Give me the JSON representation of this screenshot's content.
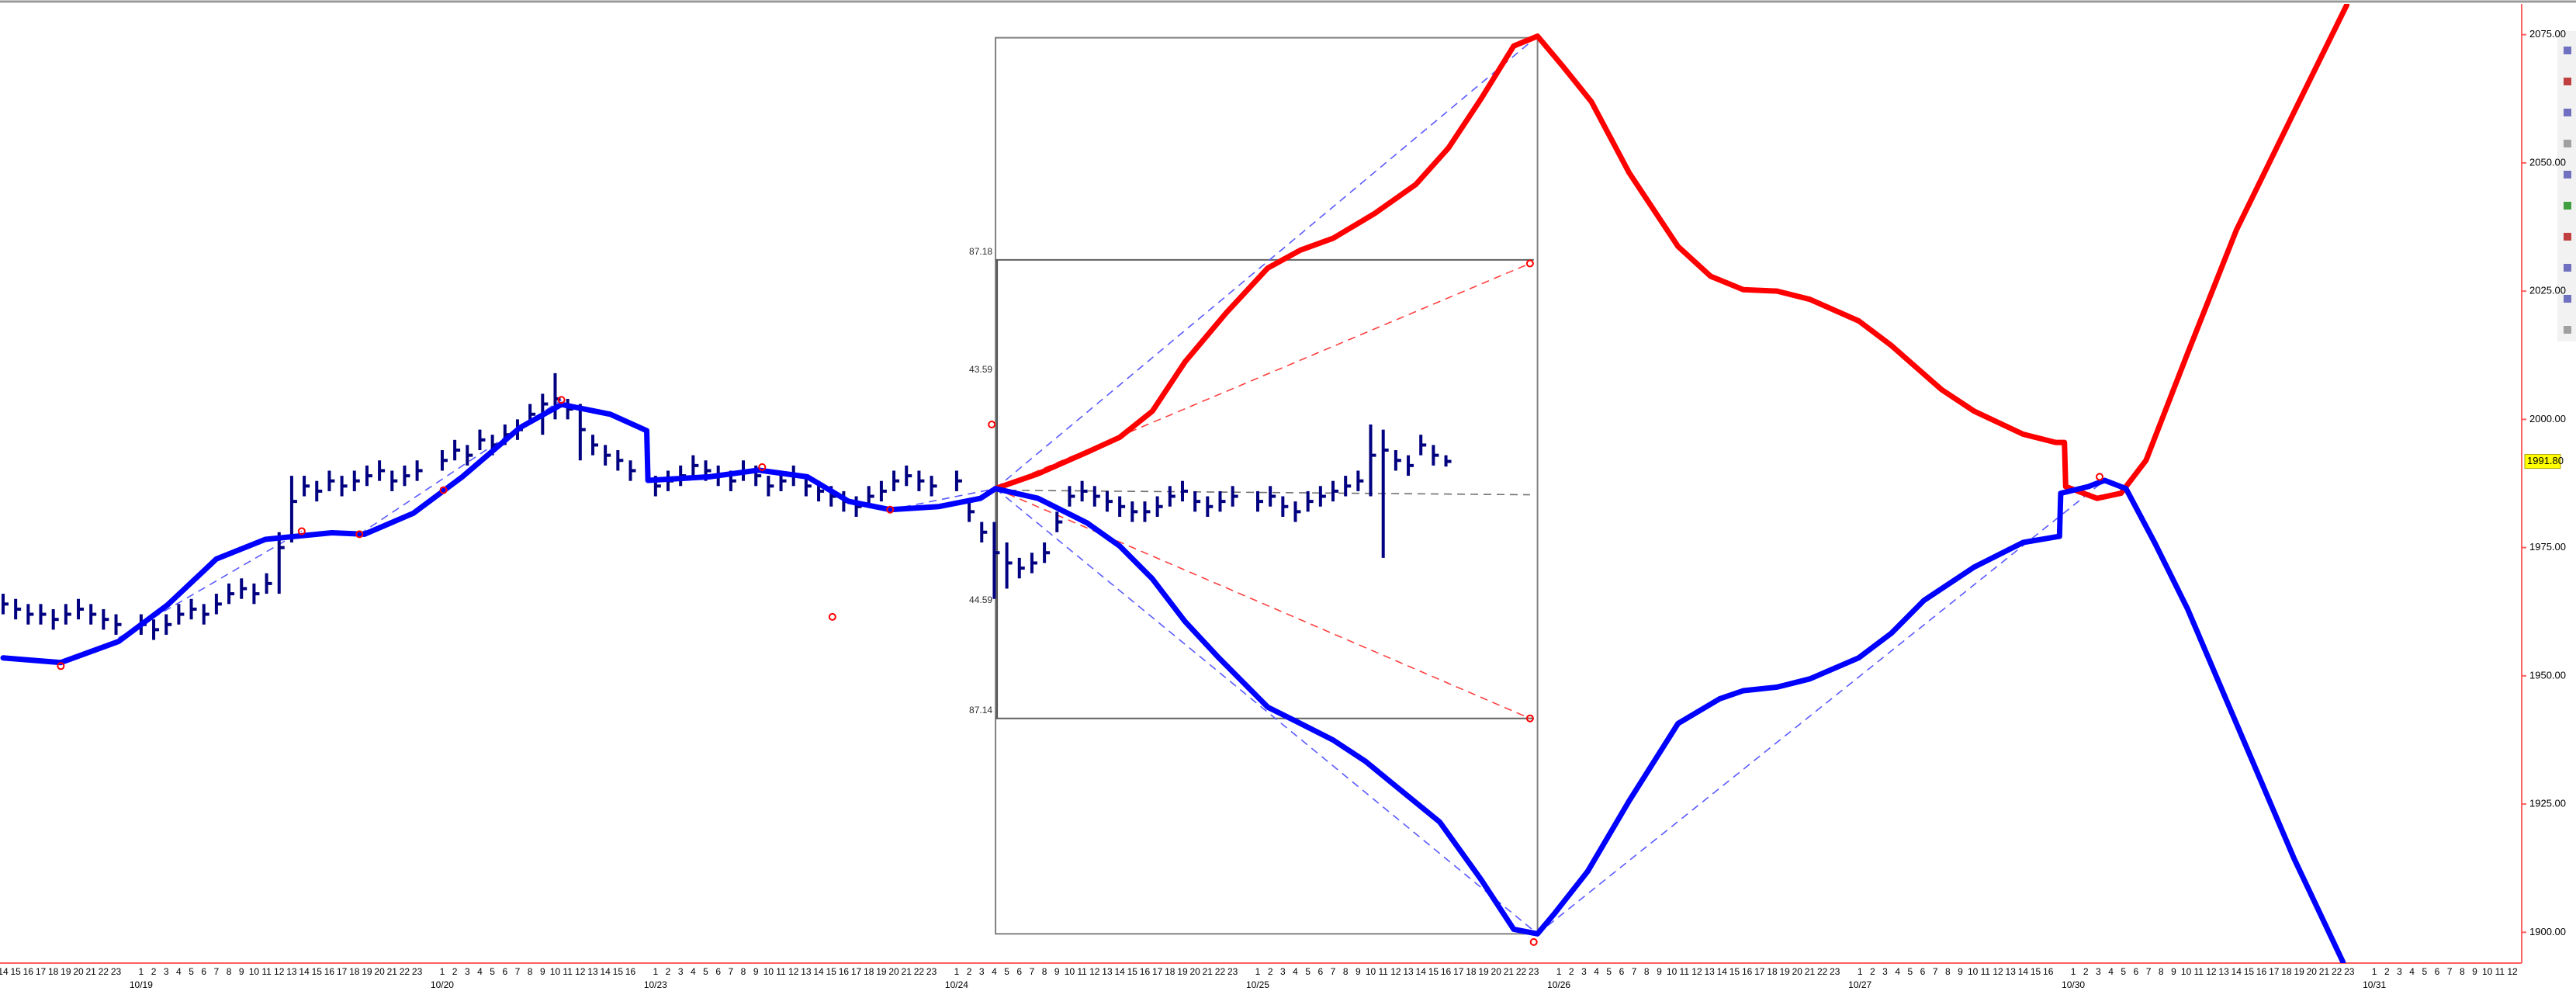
{
  "chart_data": {
    "type": "ohlc",
    "categories": [
      14,
      15,
      16,
      17,
      18,
      19,
      20,
      21,
      22,
      23,
      null,
      1,
      2,
      3,
      4,
      5,
      6,
      7,
      8,
      9,
      10,
      11,
      12,
      13,
      14,
      15,
      16,
      17,
      18,
      19,
      20,
      21,
      22,
      23,
      null,
      1,
      2,
      3,
      4,
      5,
      6,
      7,
      8,
      9,
      10,
      11,
      12,
      13,
      14,
      15,
      16,
      null,
      1,
      2,
      3,
      4,
      5,
      6,
      7,
      8,
      9,
      10,
      11,
      12,
      13,
      14,
      15,
      16,
      17,
      18,
      19,
      20,
      21,
      22,
      23,
      null,
      1,
      2,
      3,
      4,
      5,
      6,
      7,
      8,
      9,
      10,
      11,
      12,
      13,
      14,
      15,
      16,
      17,
      18,
      19,
      20,
      21,
      22,
      23,
      null,
      1,
      2,
      3,
      4,
      5,
      6,
      7,
      8,
      9,
      10,
      11,
      12,
      13,
      14,
      15,
      16,
      17,
      18,
      19,
      20,
      21,
      22,
      23,
      null,
      1,
      2,
      3,
      4,
      5,
      6,
      7,
      8,
      9,
      10,
      11,
      12,
      13,
      14,
      15,
      16,
      17,
      18,
      19,
      20,
      21,
      22,
      23,
      null,
      1,
      2,
      3,
      4,
      5,
      6,
      7,
      8,
      9,
      10,
      11,
      12,
      13,
      14,
      15,
      16,
      null,
      1,
      2,
      3,
      4,
      5,
      6,
      7,
      8,
      9,
      10,
      11,
      12,
      13,
      14,
      15,
      16,
      17,
      18,
      19,
      20,
      21,
      22,
      23,
      null,
      1,
      2,
      3,
      4,
      5,
      6,
      7,
      8,
      9,
      10,
      11,
      12
    ],
    "date_ticks": [
      {
        "value": 11,
        "label": "10/19"
      },
      {
        "value": 35,
        "label": "10/20"
      },
      {
        "value": 52,
        "label": "10/23"
      },
      {
        "value": 76,
        "label": "10/24"
      },
      {
        "value": 100,
        "label": "10/25"
      },
      {
        "value": 124,
        "label": "10/26"
      },
      {
        "value": 148,
        "label": "10/27"
      },
      {
        "value": 165,
        "label": "10/30"
      },
      {
        "value": 189,
        "label": "10/31"
      }
    ],
    "ylim": [
      1894,
      2081
    ],
    "yticks": [
      {
        "value": 1900,
        "label": "1900.00"
      },
      {
        "value": 1925,
        "label": "1925.00"
      },
      {
        "value": 1950,
        "label": "1950.00"
      },
      {
        "value": 1975,
        "label": "1975.00"
      },
      {
        "value": 2000,
        "label": "2000.00"
      },
      {
        "value": 2025,
        "label": "2025.00"
      },
      {
        "value": 2050,
        "label": "2050.00"
      },
      {
        "value": 2075,
        "label": "2075.00"
      }
    ],
    "last_price": {
      "value": 1991.8,
      "label": "1991.80"
    },
    "bars": {
      "color": "#000080",
      "high": [
        1966,
        1965,
        1964,
        1964,
        1963,
        1964,
        1965,
        1964,
        1963,
        1962,
        null,
        1962,
        1961,
        1962,
        1964,
        1965,
        1964,
        1966,
        1968,
        1969,
        1968,
        1970,
        1978,
        1989,
        1989,
        1988,
        1990,
        1989,
        1990,
        1991,
        1992,
        1990,
        1991,
        1992,
        null,
        1994,
        1996,
        1995,
        1998,
        1997,
        1999,
        2000,
        2003,
        2005,
        2009,
        2004,
        2003,
        1997,
        1995,
        1994,
        1992,
        null,
        1989,
        1990,
        1991,
        1993,
        1992,
        1991,
        1990,
        1992,
        1991,
        1989,
        1990,
        1991,
        1989,
        1988,
        1987,
        1986,
        1985,
        1987,
        1988,
        1990,
        1991,
        1990,
        1989,
        null,
        1990,
        1984,
        1980,
        1980,
        1976,
        1973,
        1974,
        1976,
        1982,
        1987,
        1988,
        1987,
        1986,
        1985,
        1984,
        1984,
        1985,
        1987,
        1988,
        1986,
        1985,
        1986,
        1987,
        null,
        1986,
        1987,
        1985,
        1984,
        1986,
        1987,
        1988,
        1989,
        1990,
        1999,
        1998,
        1994,
        1993,
        1997,
        1995,
        1993,
        null,
        null,
        null,
        null,
        null,
        null,
        null,
        null,
        null,
        null,
        null,
        null,
        null,
        null,
        null,
        null,
        null,
        null,
        null,
        null,
        null,
        null,
        null,
        null,
        null,
        null,
        null,
        null,
        null,
        null,
        null,
        null,
        null,
        null,
        null,
        null,
        null,
        null,
        null,
        null,
        null,
        null,
        null,
        null,
        null,
        null,
        null,
        null,
        null,
        null,
        null,
        null,
        null,
        null,
        null,
        null,
        null,
        null,
        null,
        null,
        null,
        null,
        null,
        null,
        null,
        null,
        null,
        null,
        null,
        null,
        null,
        null,
        null,
        null,
        null,
        null,
        null,
        null,
        null,
        null,
        null,
        null,
        null,
        null,
        null
      ],
      "low": [
        1962,
        1961,
        1960,
        1960,
        1959,
        1960,
        1961,
        1960,
        1959,
        1958,
        null,
        1958,
        1957,
        1958,
        1960,
        1961,
        1960,
        1962,
        1964,
        1965,
        1964,
        1966,
        1966,
        1976,
        1985,
        1984,
        1986,
        1985,
        1986,
        1987,
        1988,
        1986,
        1987,
        1988,
        null,
        1990,
        1992,
        1991,
        1994,
        1993,
        1995,
        1996,
        1999,
        1997,
        2000,
        2000,
        1992,
        1993,
        1991,
        1990,
        1988,
        null,
        1985,
        1986,
        1987,
        1989,
        1988,
        1987,
        1986,
        1988,
        1987,
        1985,
        1986,
        1987,
        1985,
        1984,
        1983,
        1982,
        1981,
        1983,
        1984,
        1986,
        1987,
        1986,
        1985,
        null,
        1986,
        1980,
        1976,
        1965,
        1967,
        1969,
        1970,
        1972,
        1978,
        1983,
        1984,
        1983,
        1982,
        1981,
        1980,
        1980,
        1981,
        1983,
        1984,
        1982,
        1981,
        1982,
        1983,
        null,
        1982,
        1983,
        1981,
        1980,
        1982,
        1983,
        1984,
        1985,
        1986,
        1985,
        1973,
        1990,
        1989,
        1993,
        1991,
        1990.8,
        null,
        null,
        null,
        null,
        null,
        null,
        null,
        null,
        null,
        null,
        null,
        null,
        null,
        null,
        null,
        null,
        null,
        null,
        null,
        null,
        null,
        null,
        null,
        null,
        null,
        null,
        null,
        null,
        null,
        null,
        null,
        null,
        null,
        null,
        null,
        null,
        null,
        null,
        null,
        null,
        null,
        null,
        null,
        null,
        null,
        null,
        null,
        null,
        null,
        null,
        null,
        null,
        null,
        null,
        null,
        null,
        null,
        null,
        null,
        null,
        null,
        null,
        null,
        null,
        null,
        null,
        null,
        null,
        null,
        null,
        null,
        null,
        null,
        null,
        null,
        null,
        null,
        null,
        null,
        null,
        null,
        null,
        null,
        null,
        null
      ],
      "close": [
        1964,
        1963,
        1962,
        1962,
        1961,
        1962,
        1963,
        1962,
        1961,
        1960,
        null,
        1960,
        1959,
        1960,
        1962,
        1963,
        1962,
        1964,
        1966,
        1967,
        1966,
        1968,
        1975,
        1984,
        1987,
        1986,
        1988,
        1987,
        1988,
        1989,
        1990,
        1988,
        1989,
        1990,
        null,
        1992,
        1994,
        1993,
        1996,
        1995,
        1997,
        1998,
        2001,
        2003,
        2004,
        2002,
        1998,
        1995,
        1993,
        1992,
        1990,
        null,
        1987,
        1988,
        1989,
        1991,
        1990,
        1989,
        1988,
        1990,
        1989,
        1987,
        1988,
        1989,
        1987,
        1986,
        1985,
        1984,
        1983,
        1985,
        1986,
        1988,
        1989,
        1988,
        1987,
        null,
        1988,
        1982,
        1978,
        1974,
        1972,
        1971,
        1972,
        1974,
        1980,
        1985,
        1986,
        1985,
        1984,
        1983,
        1982,
        1982,
        1983,
        1985,
        1986,
        1984,
        1983,
        1984,
        1985,
        null,
        1984,
        1985,
        1983,
        1982,
        1984,
        1985,
        1986,
        1987,
        1988,
        1993,
        1994,
        1992,
        1991,
        1995,
        1993,
        1991.8,
        null,
        null,
        null,
        null,
        null,
        null,
        null,
        null,
        null,
        null,
        null,
        null,
        null,
        null,
        null,
        null,
        null,
        null,
        null,
        null,
        null,
        null,
        null,
        null,
        null,
        null,
        null,
        null,
        null,
        null,
        null,
        null,
        null,
        null,
        null,
        null,
        null,
        null,
        null,
        null,
        null,
        null,
        null,
        null,
        null,
        null,
        null,
        null,
        null,
        null,
        null,
        null,
        null,
        null,
        null,
        null,
        null,
        null,
        null,
        null,
        null,
        null,
        null,
        null,
        null,
        null,
        null,
        null,
        null,
        null,
        null,
        null,
        null,
        null,
        null,
        null,
        null,
        null,
        null,
        null,
        null,
        null,
        null,
        null,
        null
      ]
    },
    "lines": [
      {
        "color": "#0000ff",
        "x": [
          0,
          4.6,
          9.2,
          13.1,
          17.0,
          20.9,
          26.2,
          28.8,
          32.7,
          36.6,
          41.2,
          44.5,
          48.4,
          51.3,
          51.4,
          56.3,
          60.2,
          64.1,
          67.4,
          70.7,
          74.6,
          77.9,
          79.1
        ],
        "values": [
          1953.5,
          1952.6,
          1956.7,
          1963.8,
          1972.8,
          1976.6,
          1977.9,
          1977.6,
          1981.7,
          1988.8,
          1998.4,
          2002.9,
          2001.0,
          1997.8,
          1988.1,
          1988.8,
          1990.1,
          1988.8,
          1984.0,
          1982.4,
          1983.0,
          1984.6,
          1986.5
        ]
      },
      {
        "color": "#ff0000",
        "x": [
          79.1,
          82.5,
          86.4,
          89.0,
          91.6,
          94.2,
          97.5,
          100.8,
          103.4,
          106.0,
          109.3,
          112.6,
          115.2,
          117.8,
          120.4,
          122.3,
          124.3,
          126.6,
          129.6,
          133.5,
          136.1,
          138.7,
          141.4,
          144.0,
          147.9,
          150.5,
          154.5,
          157.1,
          161.0,
          163.6,
          164.3,
          164.4,
          166.9,
          168.8,
          170.8,
          174.1,
          178.0,
          182.6,
          186.8
        ],
        "values": [
          1986.5,
          1989.4,
          1993.6,
          1996.5,
          2001.6,
          2011.2,
          2020.8,
          2029.5,
          2033.0,
          2035.3,
          2040.1,
          2045.8,
          2052.9,
          2062.5,
          2072.8,
          2074.7,
          2068.9,
          2061.9,
          2048.1,
          2033.7,
          2027.9,
          2025.3,
          2025.0,
          2023.4,
          2019.2,
          2014.4,
          2005.8,
          2001.6,
          1997.1,
          1995.5,
          1995.5,
          1986.9,
          1984.6,
          1985.6,
          1992.0,
          2012.8,
          2036.9,
          2059.9,
          2080.8
        ]
      },
      {
        "color": "#0000ff",
        "x": [
          79.1,
          82.5,
          86.4,
          89.0,
          91.6,
          94.2,
          96.9,
          100.8,
          103.4,
          106.0,
          108.6,
          111.3,
          114.5,
          117.8,
          120.4,
          122.3,
          123.7,
          126.3,
          129.6,
          133.5,
          136.8,
          138.7,
          141.4,
          144.0,
          147.9,
          150.5,
          153.1,
          157.1,
          161.0,
          163.9,
          164.0,
          166.2,
          167.5,
          169.2,
          171.5,
          174.1,
          178.0,
          182.6,
          186.5
        ],
        "values": [
          1986.5,
          1984.6,
          1979.8,
          1975.3,
          1968.9,
          1960.6,
          1953.5,
          1943.9,
          1940.7,
          1937.5,
          1933.3,
          1927.9,
          1921.5,
          1910.3,
          1900.6,
          1899.7,
          1903.8,
          1911.9,
          1925.6,
          1940.7,
          1945.5,
          1947.1,
          1947.8,
          1949.4,
          1953.5,
          1958.3,
          1964.7,
          1971.2,
          1976.0,
          1977.2,
          1985.6,
          1986.9,
          1988.1,
          1986.5,
          1975.9,
          1963.1,
          1940.7,
          1914.4,
          1894.2
        ]
      }
    ],
    "trend_lines": [
      {
        "color": "#5a5aff",
        "dashed": true,
        "x": [
          79.1,
          122.3
        ],
        "values": [
          1986.5,
          2074.7
        ]
      },
      {
        "color": "#5a5aff",
        "dashed": true,
        "x": [
          79.1,
          122.3
        ],
        "values": [
          1986.5,
          1899.7
        ]
      },
      {
        "color": "#5a5aff",
        "dashed": true,
        "x": [
          122.3,
          167.5
        ],
        "values": [
          1899.7,
          1988.1
        ]
      },
      {
        "color": "#5a5aff",
        "dashed": true,
        "x": [
          9.2,
          23.8
        ],
        "values": [
          1957.4,
          1978.2
        ]
      },
      {
        "color": "#5a5aff",
        "dashed": true,
        "x": [
          28.4,
          44.5
        ],
        "values": [
          1977.6,
          2003.8
        ]
      },
      {
        "color": "#5a5aff",
        "dashed": true,
        "x": [
          70.7,
          79.1
        ],
        "values": [
          1982.4,
          1986.5
        ]
      },
      {
        "color": "#ff4040",
        "dashed": true,
        "x": [
          79.1,
          121.7
        ],
        "values": [
          1986.5,
          2030.4
        ]
      },
      {
        "color": "#ff4040",
        "dashed": true,
        "x": [
          79.1,
          121.7
        ],
        "values": [
          1986.5,
          1941.7
        ]
      },
      {
        "color": "#707070",
        "dashed": true,
        "x": [
          79.1,
          121.7
        ],
        "values": [
          1986.2,
          1985.3
        ]
      }
    ],
    "range_box": {
      "color": "#808080",
      "x": [
        79.1,
        122.3
      ],
      "values": [
        1899.7,
        2074.4
      ]
    },
    "levels": [
      {
        "x": [
          79.1,
          122.0
        ],
        "value": 2031.1,
        "label": "87.18"
      },
      {
        "x": [
          79.1,
          122.0
        ],
        "value": 1941.7,
        "label": "87.14"
      }
    ],
    "range_labels": [
      {
        "x": 79.1,
        "value": 2009.6,
        "label": "43.59"
      },
      {
        "x": 79.1,
        "value": 1964.7,
        "label": "44.59"
      }
    ],
    "markers": {
      "color": "#ff0000",
      "x": [
        4.6,
        23.8,
        28.4,
        35.1,
        44.5,
        60.5,
        66.1,
        70.7,
        78.8,
        121.7,
        121.7,
        122.0,
        167.1
      ],
      "values": [
        1951.9,
        1978.2,
        1977.6,
        1986.2,
        2003.8,
        1990.7,
        1961.5,
        1982.4,
        1999.0,
        2030.4,
        1941.7,
        1898.1,
        1988.8
      ]
    }
  }
}
